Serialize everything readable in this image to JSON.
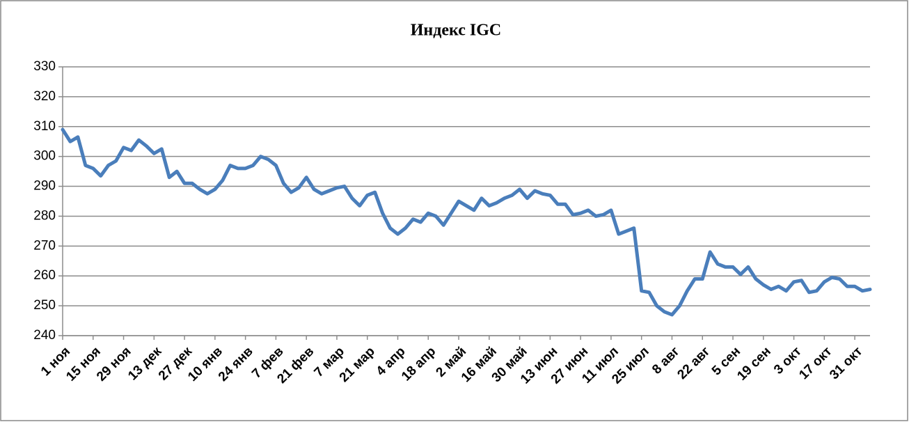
{
  "chart_data": {
    "type": "line",
    "title": "Индекс IGC",
    "categories": [
      "1 ноя",
      null,
      null,
      null,
      "15 ноя",
      null,
      null,
      null,
      "29 ноя",
      null,
      null,
      null,
      "13 дек",
      null,
      null,
      null,
      "27 дек",
      null,
      null,
      null,
      "10 янв",
      null,
      null,
      null,
      "24 янв",
      null,
      null,
      null,
      "7 фев",
      null,
      null,
      null,
      "21 фев",
      null,
      null,
      null,
      "7 мар",
      null,
      null,
      null,
      "21 мар",
      null,
      null,
      null,
      "4 апр",
      null,
      null,
      null,
      "18 апр",
      null,
      null,
      null,
      "2 май",
      null,
      null,
      null,
      "16 май",
      null,
      null,
      null,
      "30 май",
      null,
      null,
      null,
      "13 июн",
      null,
      null,
      null,
      "27 июн",
      null,
      null,
      null,
      "11 июл",
      null,
      null,
      null,
      "25 июл",
      null,
      null,
      null,
      "8 авг",
      null,
      null,
      null,
      "22 авг",
      null,
      null,
      null,
      "5 сен",
      null,
      null,
      null,
      "19 сен",
      null,
      null,
      null,
      "3 окт",
      null,
      null,
      null,
      "17 окт",
      null,
      null,
      null,
      "31 окт",
      null,
      null
    ],
    "series": [
      {
        "name": "Индекс IGC",
        "color": "#4a7ebb",
        "values": [
          309,
          305,
          306.5,
          297,
          296,
          293.5,
          297,
          298.5,
          303,
          302,
          305.5,
          303.5,
          301,
          302.5,
          293,
          295,
          291,
          291,
          289,
          287.5,
          289,
          292,
          297,
          296,
          296,
          297,
          300,
          299,
          297,
          291,
          288,
          289.5,
          293,
          289,
          287.5,
          288.5,
          289.5,
          290,
          286,
          283.5,
          287,
          288,
          281,
          276,
          274,
          276,
          279,
          278,
          281,
          280,
          277,
          281,
          285,
          283.5,
          282,
          286,
          283.5,
          284.5,
          286,
          287,
          289,
          286,
          288.5,
          287.5,
          287,
          284,
          284,
          280.5,
          281,
          282,
          280,
          280.5,
          282,
          274,
          275,
          276,
          255,
          254.5,
          250,
          248,
          247,
          250,
          255,
          259,
          259,
          268,
          264,
          263,
          263,
          260.5,
          263,
          259,
          257,
          255.5,
          256.5,
          255,
          258,
          258.5,
          254.5,
          255,
          258,
          259.5,
          259,
          256.5,
          256.5,
          255,
          255.5
        ]
      }
    ],
    "ylim": [
      240,
      330
    ],
    "yticks": [
      240,
      250,
      260,
      270,
      280,
      290,
      300,
      310,
      320,
      330
    ],
    "grid": true
  }
}
